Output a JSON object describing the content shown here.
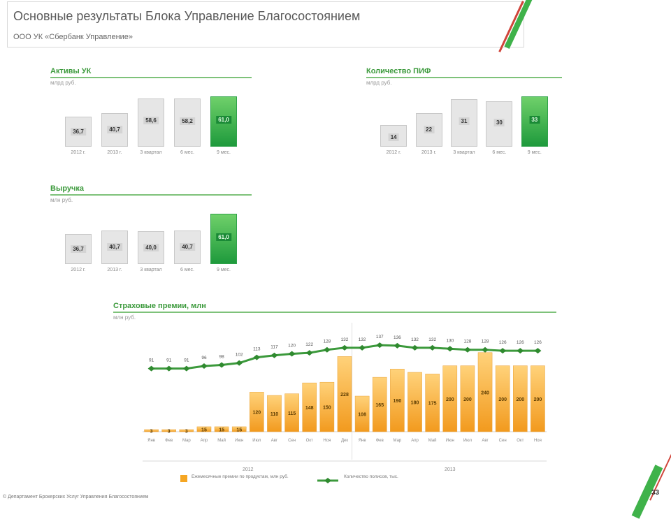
{
  "header": {
    "title": "Основные результаты Блока Управление Благосостоянием",
    "subtitle": "ООО УК «Сбербанк Управление»"
  },
  "colors": {
    "accent_green": "#2fa24a",
    "bar_grey": "#e6e6e6",
    "bar_orange": "#f5a623",
    "line_green": "#3c9a3c"
  },
  "panels": [
    {
      "title": "Активы УК",
      "unit": "млрд руб.",
      "chart_data": {
        "type": "bar",
        "categories": [
          "2012 г.",
          "2013 г.",
          "3 квартал",
          "6 мес.",
          "9 мес."
        ],
        "values": [
          36.7,
          40.7,
          58.6,
          58.2,
          61.0
        ],
        "value_labels": [
          "36,7",
          "40,7",
          "58,6",
          "58,2",
          "61,0"
        ],
        "highlight": [
          false,
          false,
          false,
          false,
          true
        ]
      }
    },
    {
      "title": "Количество ПИФ",
      "unit": "млрд руб.",
      "chart_data": {
        "type": "bar",
        "categories": [
          "2012 г.",
          "2013 г.",
          "3 квартал",
          "6 мес.",
          "9 мес."
        ],
        "values": [
          14,
          22,
          31,
          30,
          33
        ],
        "value_labels": [
          "14",
          "22",
          "31",
          "30",
          "33"
        ],
        "highlight": [
          false,
          false,
          false,
          false,
          true
        ]
      }
    },
    {
      "title": "Выручка",
      "unit": "млн руб.",
      "chart_data": {
        "type": "bar",
        "categories": [
          "2012 г.",
          "2013 г.",
          "3 квартал",
          "6 мес.",
          "9 мес."
        ],
        "values": [
          36.7,
          40.7,
          40.0,
          40.7,
          61.0
        ],
        "value_labels": [
          "36,7",
          "40,7",
          "40,0",
          "40,7",
          "61,0"
        ],
        "highlight": [
          false,
          false,
          false,
          false,
          true
        ]
      }
    }
  ],
  "big_chart": {
    "title": "Страховые премии, млн",
    "unit": "млн руб.",
    "year_labels": [
      "2012",
      "2013"
    ],
    "legend": [
      {
        "label": "Ежемесячные премии по продуктам, млн руб.",
        "color": "#f5a623"
      },
      {
        "label": "Количество полисов, тыс.",
        "color": "#3c9a3c"
      }
    ],
    "chart_data": {
      "type": "bar",
      "categories": [
        "Янв",
        "Фев",
        "Мар",
        "Апр",
        "Май",
        "Июн",
        "Июл",
        "Авг",
        "Сен",
        "Окт",
        "Ноя",
        "Дек",
        "Янв",
        "Фев",
        "Мар",
        "Апр",
        "Май",
        "Июн",
        "Июл",
        "Авг",
        "Сен",
        "Окт",
        "Ноя"
      ],
      "series": [
        {
          "values": [
            3,
            3,
            3,
            15,
            15,
            15,
            120,
            110,
            115,
            148,
            150,
            228,
            108,
            165,
            190,
            180,
            175,
            200,
            200,
            240,
            200,
            200,
            200
          ]
        },
        {
          "values": [
            91,
            91,
            91,
            96,
            98,
            102,
            113,
            117,
            120,
            122,
            128,
            132,
            132,
            137,
            136,
            132,
            132,
            130,
            128,
            128,
            126,
            126,
            126
          ]
        }
      ],
      "bar_labels": [
        "3",
        "3",
        "3",
        "15",
        "15",
        "15",
        "120",
        "110",
        "115",
        "148",
        "150",
        "228",
        "108",
        "165",
        "190",
        "180",
        "175",
        "200",
        "200",
        "240",
        "200",
        "200",
        "200"
      ],
      "line_labels": [
        "91",
        "91",
        "91",
        "96",
        "98",
        "102",
        "113",
        "117",
        "120",
        "122",
        "128",
        "132",
        "132",
        "137",
        "136",
        "132",
        "132",
        "130",
        "128",
        "128",
        "126",
        "126",
        "126"
      ]
    }
  },
  "footnote": "© Департамент Брокерских Услуг Управления Благосостоянием",
  "page_number": "33"
}
